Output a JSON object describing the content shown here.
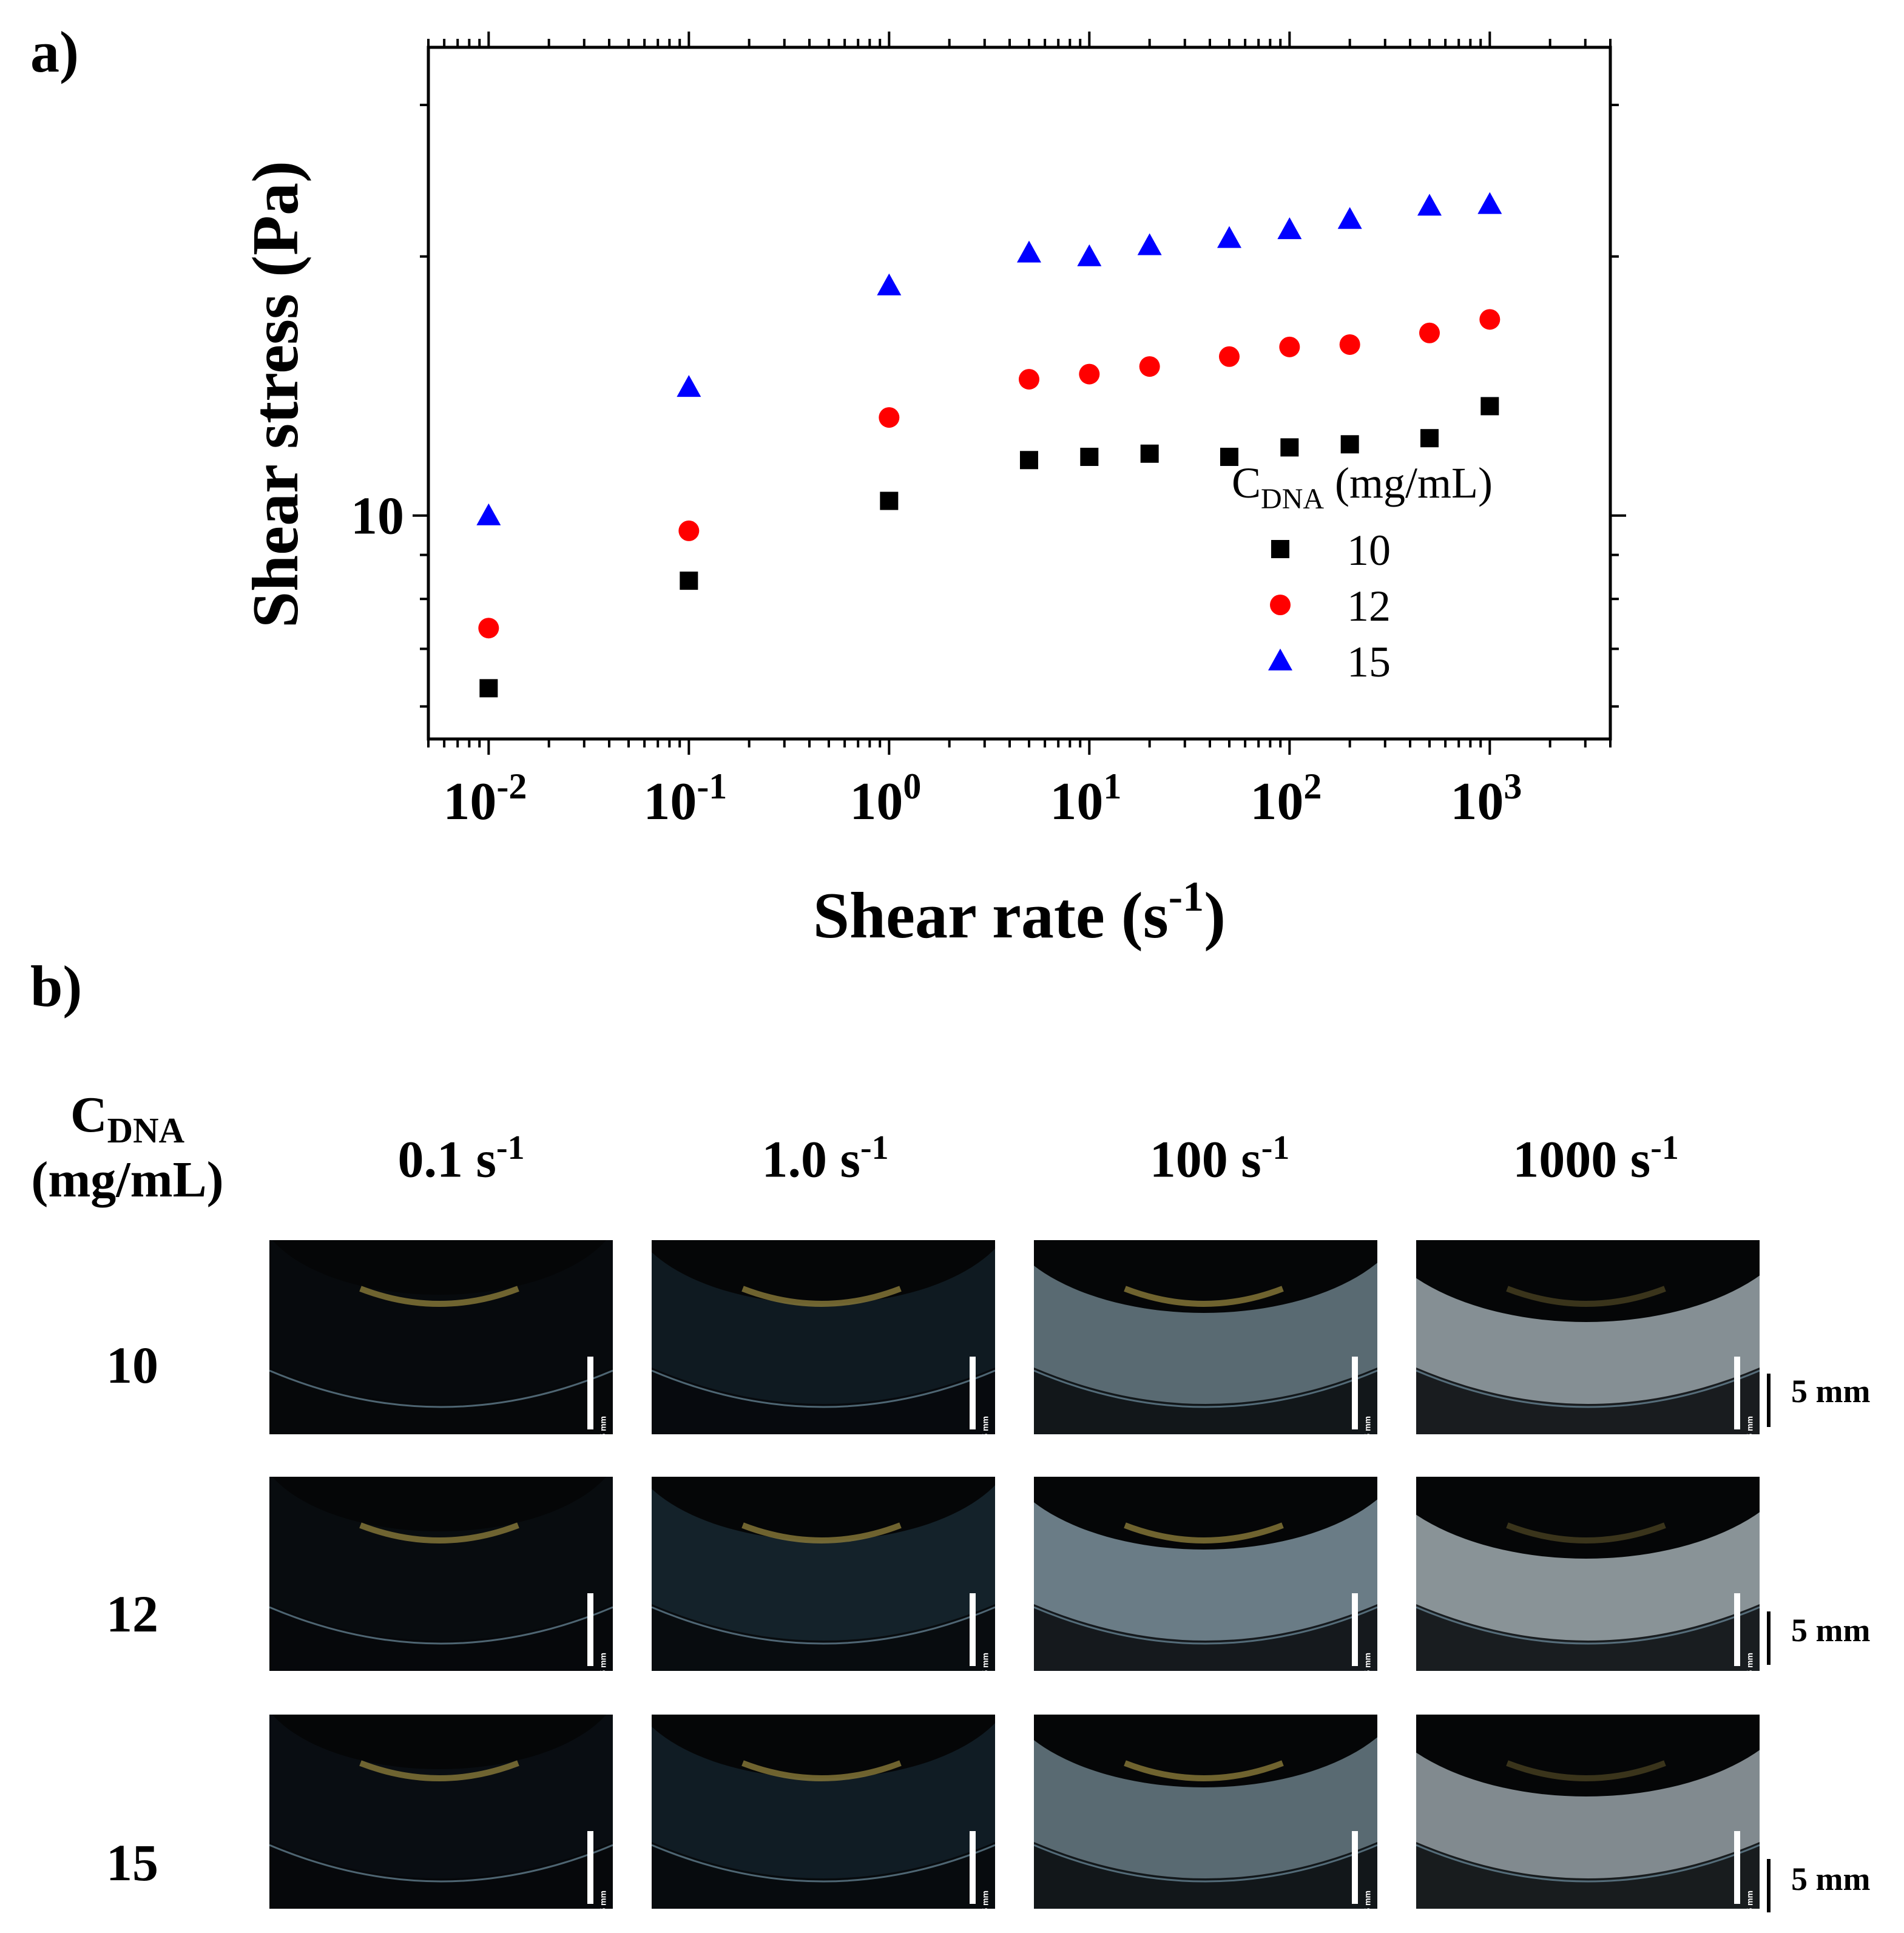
{
  "panel_a_label": "a)",
  "panel_b_label": "b)",
  "chart_data": {
    "type": "scatter",
    "xlabel": "Shear rate (s-1)",
    "xlabel_main": "Shear rate (s",
    "xlabel_sup": "-1",
    "xlabel_end": ")",
    "ylabel": "Shear stress (Pa)",
    "x_scale": "log",
    "y_scale": "log",
    "xlim": [
      0.005,
      4000
    ],
    "ylim": [
      5.5,
      35
    ],
    "x_ticks": [
      {
        "value": 0.01,
        "base": "10",
        "exp": "-2"
      },
      {
        "value": 0.1,
        "base": "10",
        "exp": "-1"
      },
      {
        "value": 1,
        "base": "10",
        "exp": "0"
      },
      {
        "value": 10,
        "base": "10",
        "exp": "1"
      },
      {
        "value": 100,
        "base": "10",
        "exp": "2"
      },
      {
        "value": 1000,
        "base": "10",
        "exp": "3"
      }
    ],
    "y_ticks": [
      {
        "value": 10,
        "label": "10"
      }
    ],
    "grid": false,
    "legend_position": "bottom-right",
    "legend_title_main": "C",
    "legend_title_sub": "DNA",
    "legend_title_end": " (mg/mL)",
    "x": [
      0.01,
      0.1,
      1,
      5,
      10,
      20,
      50,
      100,
      200,
      500,
      1000
    ],
    "series": [
      {
        "name": "10",
        "marker": "square",
        "color": "#000000",
        "x": [
          0.01,
          0.1,
          1,
          5,
          10,
          20,
          50,
          100,
          200,
          500,
          1000
        ],
        "values": [
          6.3,
          8.4,
          10.4,
          11.6,
          11.7,
          11.8,
          11.7,
          12.0,
          12.1,
          12.3,
          13.4
        ]
      },
      {
        "name": "12",
        "marker": "circle",
        "color": "#ff0000",
        "x": [
          0.01,
          0.1,
          1,
          5,
          10,
          20,
          50,
          100,
          200,
          500,
          1000
        ],
        "values": [
          7.4,
          9.6,
          13.0,
          14.4,
          14.6,
          14.9,
          15.3,
          15.7,
          15.8,
          16.3,
          16.9
        ]
      },
      {
        "name": "15",
        "marker": "triangle",
        "color": "#0000ff",
        "x": [
          0.01,
          0.1,
          1,
          5,
          10,
          20,
          50,
          100,
          200,
          500,
          1000
        ],
        "values": [
          10.0,
          14.1,
          18.5,
          20.2,
          20.0,
          20.6,
          21.0,
          21.5,
          22.1,
          22.9,
          23.0
        ]
      }
    ]
  },
  "panel_b": {
    "cdna_main": "C",
    "cdna_sub": "DNA",
    "cdna_unit": "(mg/mL)",
    "columns": [
      {
        "main": "0.1 s",
        "sup": "-1"
      },
      {
        "main": "1.0 s",
        "sup": "-1"
      },
      {
        "main": "100 s",
        "sup": "-1"
      },
      {
        "main": "1000 s",
        "sup": "-1"
      }
    ],
    "rows": [
      "10",
      "12",
      "15"
    ],
    "scale_bar_label": "5 mm",
    "photo_scale_label": "5 mm"
  }
}
